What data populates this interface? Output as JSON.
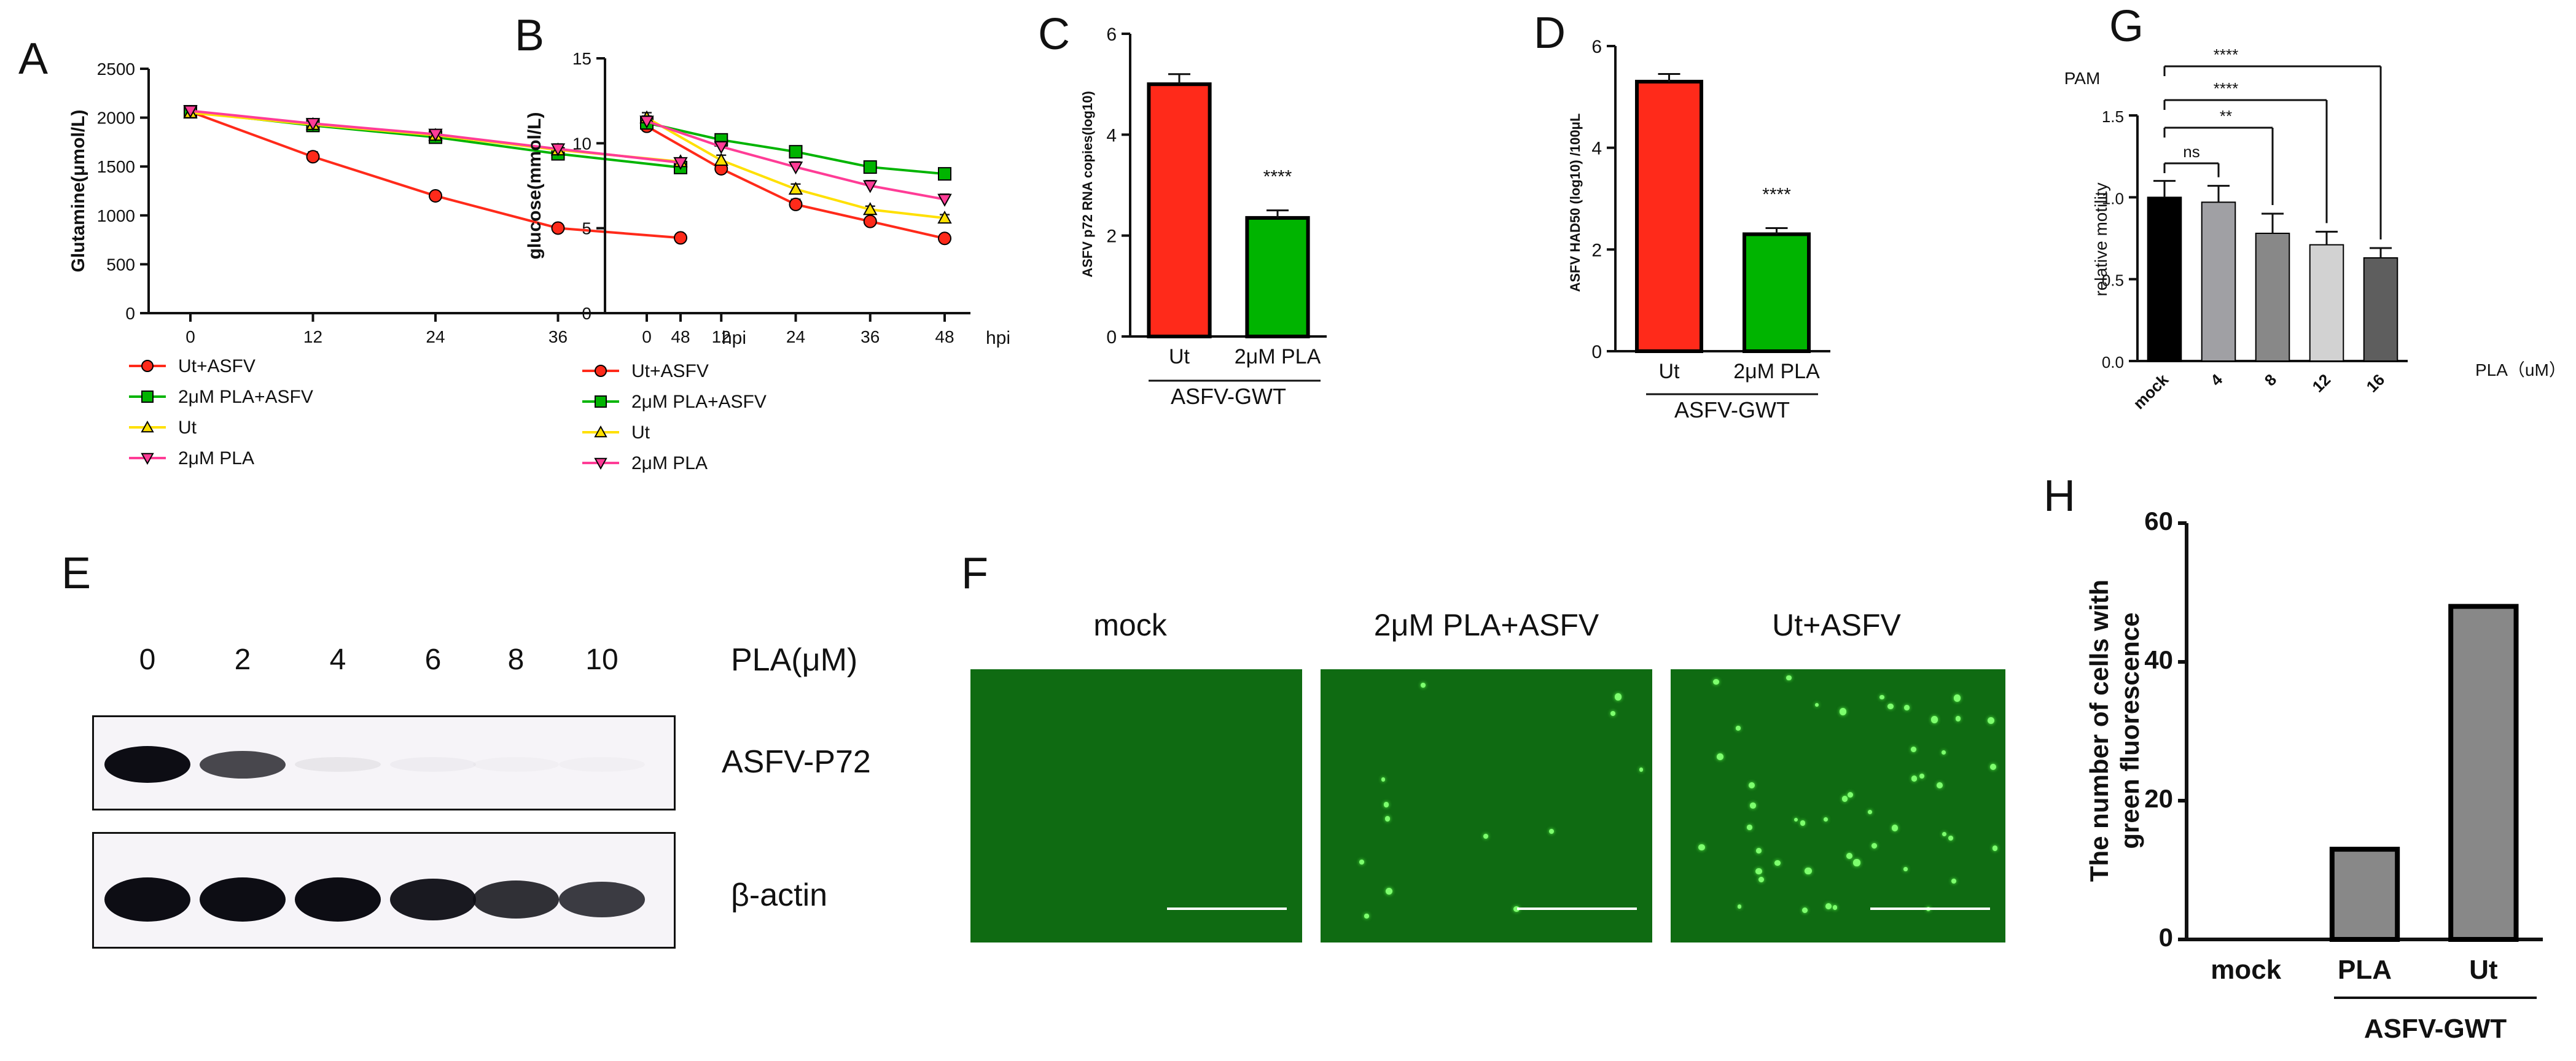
{
  "colors": {
    "red": "#ff2a1a",
    "green": "#00b400",
    "yellow": "#ffe000",
    "pink": "#ff3c96",
    "black": "#000000",
    "g_gray1": "#a0a0a4",
    "g_gray2": "#888888",
    "g_gray3": "#d2d2d2",
    "g_gray4": "#5e5e5e",
    "h_gray": "#888888"
  },
  "panels": {
    "A": "A",
    "B": "B",
    "C": "C",
    "D": "D",
    "E": "E",
    "F": "F",
    "G": "G",
    "H": "H"
  },
  "chart_data": [
    {
      "id": "A",
      "type": "line",
      "x": [
        0,
        12,
        24,
        36,
        48
      ],
      "xlabel": "hpi",
      "ylabel": "Glutamine(μmol/L)",
      "ylim": [
        0,
        2500
      ],
      "yticks": [
        0,
        500,
        1000,
        1500,
        2000,
        2500
      ],
      "series": [
        {
          "name": "Ut+ASFV",
          "color": "red",
          "marker": "circle",
          "values": [
            2060,
            1600,
            1200,
            870,
            770
          ],
          "err": [
            40,
            50,
            30,
            30,
            20
          ]
        },
        {
          "name": "2μM PLA+ASFV",
          "color": "green",
          "marker": "square",
          "values": [
            2060,
            1920,
            1800,
            1630,
            1490
          ],
          "err": [
            30,
            40,
            50,
            60,
            40
          ]
        },
        {
          "name": "Ut",
          "color": "yellow",
          "marker": "triangle",
          "values": [
            2050,
            1930,
            1820,
            1670,
            1550
          ],
          "err": [
            30,
            40,
            40,
            50,
            30
          ]
        },
        {
          "name": "2μM PLA",
          "color": "pink",
          "marker": "triangle-down",
          "values": [
            2070,
            1940,
            1830,
            1680,
            1540
          ],
          "err": [
            30,
            40,
            40,
            50,
            30
          ]
        }
      ]
    },
    {
      "id": "B",
      "type": "line",
      "x": [
        0,
        12,
        24,
        36,
        48
      ],
      "xlabel": "hpi",
      "ylabel": "glucose(mmol/L)",
      "ylim": [
        0,
        15
      ],
      "yticks": [
        0,
        5,
        10,
        15
      ],
      "series": [
        {
          "name": "Ut+ASFV",
          "color": "red",
          "marker": "circle",
          "values": [
            11.0,
            8.5,
            6.4,
            5.4,
            4.4
          ],
          "err": [
            0.3,
            0.3,
            0.3,
            0.2,
            0.2
          ]
        },
        {
          "name": "2μM PLA+ASFV",
          "color": "green",
          "marker": "square",
          "values": [
            11.2,
            10.2,
            9.5,
            8.6,
            8.2
          ],
          "err": [
            0.3,
            0.3,
            0.2,
            0.2,
            0.2
          ]
        },
        {
          "name": "Ut",
          "color": "yellow",
          "marker": "triangle",
          "values": [
            11.5,
            9.0,
            7.3,
            6.1,
            5.6
          ],
          "err": [
            0.3,
            0.3,
            0.3,
            0.2,
            0.2
          ]
        },
        {
          "name": "2μM PLA",
          "color": "pink",
          "marker": "triangle-down",
          "values": [
            11.3,
            9.8,
            8.6,
            7.5,
            6.7
          ],
          "err": [
            0.3,
            0.3,
            0.3,
            0.3,
            0.3
          ]
        }
      ]
    },
    {
      "id": "C",
      "type": "bar",
      "categories": [
        "Ut",
        "2μM PLA"
      ],
      "group_label": "ASFV-GWT",
      "values": [
        5.0,
        2.35
      ],
      "err": [
        0.2,
        0.15
      ],
      "colors": [
        "red",
        "green"
      ],
      "ylabel": "ASFV p72 RNA copies(log10)",
      "ylim": [
        0,
        6
      ],
      "yticks": [
        0,
        2,
        4,
        6
      ],
      "annotation": "****"
    },
    {
      "id": "D",
      "type": "bar",
      "categories": [
        "Ut",
        "2μM PLA"
      ],
      "group_label": "ASFV-GWT",
      "values": [
        5.3,
        2.3
      ],
      "err": [
        0.15,
        0.12
      ],
      "colors": [
        "red",
        "green"
      ],
      "ylabel": "ASFV HAD50 (log10) /100μL",
      "ylim": [
        0,
        6
      ],
      "yticks": [
        0,
        2,
        4,
        6
      ],
      "annotation": "****"
    },
    {
      "id": "G",
      "type": "bar",
      "title": "PAM",
      "categories": [
        "mock",
        "4",
        "8",
        "12",
        "16"
      ],
      "values": [
        1.0,
        0.97,
        0.78,
        0.71,
        0.63
      ],
      "err": [
        0.1,
        0.1,
        0.12,
        0.08,
        0.06
      ],
      "colors": [
        "black",
        "g_gray1",
        "g_gray2",
        "g_gray3",
        "g_gray4"
      ],
      "xlabel": "PLA（uM）",
      "ylabel": "relative motility",
      "ylim": [
        0,
        1.5
      ],
      "yticks": [
        "0.0",
        "0.5",
        "1.0",
        "1.5"
      ],
      "comparisons": [
        {
          "to": 1,
          "label": "ns"
        },
        {
          "to": 2,
          "label": "**"
        },
        {
          "to": 3,
          "label": "****"
        },
        {
          "to": 4,
          "label": "****"
        }
      ]
    },
    {
      "id": "H",
      "type": "bar",
      "categories": [
        "mock",
        "PLA",
        "Ut"
      ],
      "group_label": "ASFV-GWT",
      "values": [
        0,
        13,
        48
      ],
      "colors": [
        "h_gray",
        "h_gray",
        "h_gray"
      ],
      "ylabel_lines": [
        "The number of cells with",
        "green fluorescence"
      ],
      "ylim": [
        0,
        60
      ],
      "yticks": [
        0,
        20,
        40,
        60
      ]
    }
  ],
  "blot": {
    "lane_labels": [
      "0",
      "2",
      "4",
      "6",
      "8",
      "10"
    ],
    "treatment_label": "PLA(μM)",
    "row_labels": [
      "ASFV-P72",
      "β-actin"
    ],
    "p72_intensity": [
      1.0,
      0.75,
      0.06,
      0.03,
      0.02,
      0.02
    ],
    "actin_intensity": [
      1.0,
      1.0,
      1.0,
      0.95,
      0.85,
      0.8
    ]
  },
  "fluorescence": {
    "labels": [
      "mock",
      "2μM PLA+ASFV",
      "Ut+ASFV"
    ]
  }
}
